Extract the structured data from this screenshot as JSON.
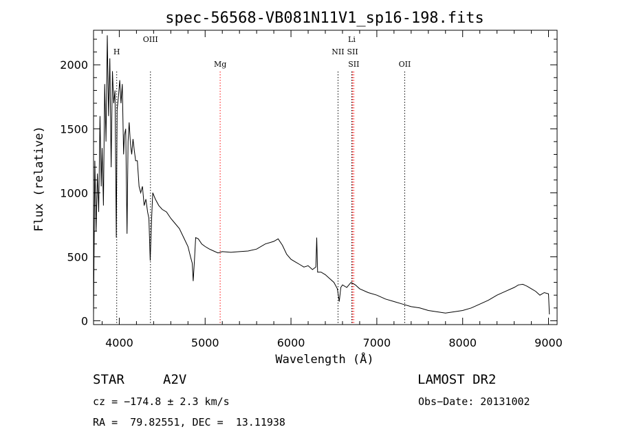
{
  "chart_data": {
    "type": "line",
    "title": "spec-56568-VB081N11V1_sp16-198.fits",
    "xlabel": "Wavelength (Å)",
    "ylabel": "Flux (relative)",
    "xlim": [
      3700,
      9100
    ],
    "ylim": [
      -30,
      2270
    ],
    "x_ticks": [
      4000,
      5000,
      6000,
      7000,
      8000,
      9000
    ],
    "y_ticks": [
      0,
      500,
      1000,
      1500,
      2000
    ],
    "series": [
      {
        "x": [
          3700,
          3715,
          3730,
          3745,
          3760,
          3775,
          3790,
          3800,
          3815,
          3830,
          3845,
          3860,
          3875,
          3890,
          3905,
          3920,
          3935,
          3950,
          3965,
          3975,
          3990,
          4005,
          4020,
          4035,
          4050,
          4060,
          4075,
          4090,
          4102,
          4115,
          4130,
          4145,
          4160,
          4175,
          4190,
          4210,
          4230,
          4250,
          4270,
          4290,
          4310,
          4330,
          4345,
          4360,
          4375,
          4390,
          4420,
          4460,
          4500,
          4550,
          4600,
          4650,
          4700,
          4750,
          4800,
          4830,
          4850,
          4861,
          4875,
          4890,
          4920,
          4960,
          5000,
          5050,
          5100,
          5150,
          5200,
          5300,
          5400,
          5500,
          5600,
          5700,
          5800,
          5850,
          5900,
          5950,
          6000,
          6050,
          6100,
          6150,
          6200,
          6250,
          6290,
          6300,
          6310,
          6350,
          6400,
          6450,
          6500,
          6540,
          6563,
          6580,
          6600,
          6650,
          6700,
          6750,
          6800,
          6900,
          7000,
          7100,
          7200,
          7300,
          7400,
          7500,
          7600,
          7700,
          7800,
          7900,
          8000,
          8100,
          8200,
          8300,
          8400,
          8500,
          8600,
          8650,
          8700,
          8750,
          8800,
          8850,
          8900,
          8950,
          9000,
          9010
        ],
        "y": [
          50,
          1250,
          700,
          1150,
          850,
          1600,
          1050,
          1350,
          900,
          1850,
          1400,
          2230,
          1600,
          2050,
          1200,
          1950,
          1700,
          1800,
          650,
          1650,
          1750,
          1880,
          1700,
          1850,
          1300,
          1450,
          1500,
          680,
          1400,
          1550,
          1380,
          1300,
          1420,
          1330,
          1250,
          1250,
          1050,
          1000,
          1050,
          900,
          950,
          850,
          800,
          470,
          780,
          1000,
          950,
          900,
          870,
          850,
          800,
          760,
          720,
          650,
          580,
          500,
          450,
          310,
          470,
          650,
          640,
          600,
          580,
          560,
          545,
          530,
          540,
          535,
          540,
          545,
          560,
          600,
          620,
          640,
          590,
          520,
          480,
          460,
          440,
          420,
          430,
          400,
          420,
          650,
          380,
          380,
          360,
          330,
          300,
          250,
          150,
          260,
          280,
          260,
          300,
          280,
          250,
          220,
          200,
          170,
          150,
          130,
          110,
          100,
          80,
          70,
          60,
          70,
          80,
          100,
          130,
          160,
          200,
          230,
          260,
          280,
          285,
          270,
          250,
          230,
          200,
          220,
          210,
          50
        ]
      }
    ],
    "spectral_lines": [
      {
        "label": "H",
        "x": 3970,
        "color": "#000000",
        "row": 1
      },
      {
        "label": "OIII",
        "x": 4363,
        "color": "#000000",
        "row": 0
      },
      {
        "label": "Mg",
        "x": 5175,
        "color": "#ff0000",
        "row": 2
      },
      {
        "label": "NII",
        "x": 6548,
        "color": "#000000",
        "row": 1
      },
      {
        "label": "Li",
        "x": 6708,
        "color": "#000000",
        "row": 0
      },
      {
        "label": "SII",
        "x": 6717,
        "color": "#ff0000",
        "row": 1
      },
      {
        "label": "SII",
        "x": 6731,
        "color": "#ff0000",
        "row": 2
      },
      {
        "label": "OII",
        "x": 7325,
        "color": "#000000",
        "row": 2
      }
    ],
    "line_color": "#000000",
    "grid": false
  },
  "info": {
    "object_type": "STAR",
    "subclass": "A2V",
    "survey": "LAMOST DR2",
    "cz": "cz = −174.8 ± 2.3 km/s",
    "obs_date": "Obs−Date: 20131002",
    "coords": "RA =  79.82551, DEC =  13.11938"
  }
}
